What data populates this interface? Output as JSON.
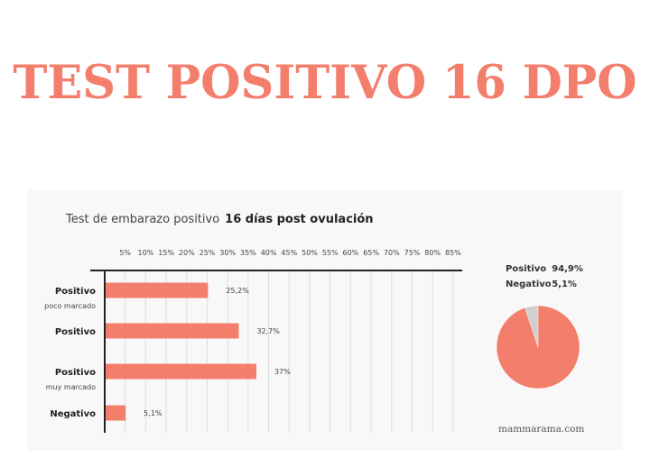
{
  "headline": "TEST POSITIVO 16 DPO",
  "source": "mammarama.com",
  "colors": {
    "accent": "#f47e6c",
    "pie_minor": "#cfcfcf"
  },
  "chart_data": [
    {
      "type": "bar",
      "orientation": "horizontal",
      "title": "Test de embarazo positivo",
      "subtitle": "16 días post ovulación",
      "categories": [
        {
          "main": "Positivo",
          "sub": "poco marcado"
        },
        {
          "main": "Positivo",
          "sub": ""
        },
        {
          "main": "Positivo",
          "sub": "muy marcado"
        },
        {
          "main": "Negativo",
          "sub": ""
        }
      ],
      "values": [
        25.2,
        32.7,
        37,
        5.1
      ],
      "value_labels": [
        "25,2%",
        "32,7%",
        "37%",
        "5,1%"
      ],
      "ticks": [
        "5%",
        "10%",
        "15%",
        "20%",
        "25%",
        "30%",
        "35%",
        "40%",
        "45%",
        "50%",
        "55%",
        "60%",
        "65%",
        "70%",
        "75%",
        "80%",
        "85%"
      ],
      "tick_values": [
        5,
        10,
        15,
        20,
        25,
        30,
        35,
        40,
        45,
        50,
        55,
        60,
        65,
        70,
        75,
        80,
        85
      ],
      "xlim": [
        0,
        85
      ],
      "axis_position": "top",
      "grid": true,
      "xlabel": "",
      "ylabel": ""
    },
    {
      "type": "pie",
      "legend_position": "top",
      "slices": [
        {
          "name": "Positivo",
          "value": 94.9,
          "label": "94,9%"
        },
        {
          "name": "Negativo",
          "value": 5.1,
          "label": "5,1%"
        }
      ]
    }
  ]
}
